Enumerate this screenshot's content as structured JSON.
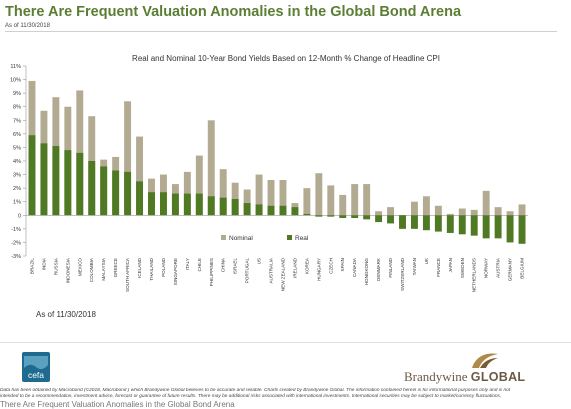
{
  "page": {
    "title": "There Are Frequent Valuation Anomalies in the Global Bond Arena",
    "as_of_top": "As of 11/30/2018",
    "as_of_bottom": "As of 11/30/2018",
    "logo_left_text": "cefa",
    "logo_right_text_main": "Brandywine",
    "logo_right_text_bold": "GLOBAL",
    "disclaimer_line1": "Data has been obtained by Macrobond (©2018, Macrobond ) which Brandywine Global believes to be accurate and reliable. Charts created by Brandywine Global. The information contained herein is for informational purposes only and is not",
    "disclaimer_line2": "intended to be a recommendation, investment advice, forecast or guarantee of future results. There may be additional risks associated with international investments. International securities may be subject to market/currency fluctuations,",
    "cutoff_text": "There Are Frequent Valuation Anomalies in the Global Bond Arena",
    "colors": {
      "title": "#5b7e34",
      "nominal": "#b3ab91",
      "real": "#4f7a23"
    }
  },
  "chart_data": {
    "type": "bar",
    "title": "Real and Nominal 10-Year Bond Yields Based on 12-Month % Change of Headline CPI",
    "xlabel": "",
    "ylabel": "",
    "ylim": [
      -3,
      11
    ],
    "yticks": [
      "11%",
      "10%",
      "9%",
      "8%",
      "7%",
      "6%",
      "5%",
      "4%",
      "3%",
      "2%",
      "1%",
      "0",
      "-1%",
      "-2%",
      "-3%"
    ],
    "ytick_values": [
      11,
      10,
      9,
      8,
      7,
      6,
      5,
      4,
      3,
      2,
      1,
      0,
      -1,
      -2,
      -3
    ],
    "grid": false,
    "legend_position": "bottom-center",
    "categories": [
      "BRAZIL",
      "INDIA",
      "RUSSIA",
      "INDONESIA",
      "MEXICO",
      "COLOMBIA",
      "MALAYSIA",
      "GREECE",
      "SOUTH AFRICA",
      "ICELAND",
      "THAILAND",
      "POLAND",
      "SINGAPORE",
      "ITALY",
      "CHILE",
      "PHILIPPINES",
      "CHINA",
      "ISRAEL",
      "PORTUGAL",
      "US",
      "AUSTRALIA",
      "NEW ZEALAND",
      "IRELAND",
      "KOREA",
      "HUNGARY",
      "CZECH",
      "SPAIN",
      "CANADA",
      "HONGKONG",
      "DENMARK",
      "FINLAND",
      "SWITZERLAND",
      "TAIWAN",
      "UK",
      "FRANCE",
      "JAPAN",
      "SWEDEN",
      "NETHERLANDS",
      "NORWAY",
      "AUSTRIA",
      "GERMANY",
      "BELGIUM"
    ],
    "series": [
      {
        "name": "Nominal",
        "values": [
          9.9,
          7.7,
          8.7,
          8.0,
          9.2,
          7.3,
          4.1,
          4.3,
          8.4,
          5.8,
          2.7,
          3.0,
          2.3,
          3.2,
          4.4,
          7.0,
          3.4,
          2.4,
          1.9,
          3.0,
          2.6,
          2.6,
          0.9,
          2.0,
          3.1,
          2.2,
          1.5,
          2.3,
          2.3,
          0.3,
          0.6,
          -0.1,
          1.0,
          1.4,
          0.7,
          0.1,
          0.5,
          0.4,
          1.8,
          0.6,
          0.3,
          0.8
        ]
      },
      {
        "name": "Real",
        "values": [
          5.9,
          5.3,
          5.1,
          4.8,
          4.6,
          4.0,
          3.6,
          3.3,
          3.2,
          2.5,
          1.7,
          1.7,
          1.6,
          1.6,
          1.6,
          1.4,
          1.3,
          1.2,
          0.9,
          0.8,
          0.7,
          0.7,
          0.6,
          0.1,
          -0.1,
          -0.1,
          -0.2,
          -0.2,
          -0.3,
          -0.5,
          -0.6,
          -1.0,
          -1.0,
          -1.1,
          -1.2,
          -1.3,
          -1.4,
          -1.5,
          -1.7,
          -1.7,
          -2.0,
          -2.1
        ]
      }
    ]
  }
}
